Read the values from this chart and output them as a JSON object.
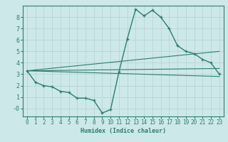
{
  "title": "",
  "xlabel": "Humidex (Indice chaleur)",
  "bg_color": "#cce8e8",
  "line_color": "#2e7d6e",
  "grid_color": "#b8d4d4",
  "xlim": [
    -0.5,
    23.5
  ],
  "ylim": [
    -0.7,
    9.0
  ],
  "yticks": [
    0,
    1,
    2,
    3,
    4,
    5,
    6,
    7,
    8
  ],
  "ytick_labels": [
    "-0",
    "1",
    "2",
    "3",
    "4",
    "5",
    "6",
    "7",
    "8"
  ],
  "xticks": [
    0,
    1,
    2,
    3,
    4,
    5,
    6,
    7,
    8,
    9,
    10,
    11,
    12,
    13,
    14,
    15,
    16,
    17,
    18,
    19,
    20,
    21,
    22,
    23
  ],
  "main_series": {
    "x": [
      0,
      1,
      2,
      3,
      4,
      5,
      6,
      7,
      8,
      9,
      10,
      11,
      12,
      13,
      14,
      15,
      16,
      17,
      18,
      19,
      20,
      21,
      22,
      23
    ],
    "y": [
      3.3,
      2.3,
      2.0,
      1.9,
      1.5,
      1.4,
      0.9,
      0.9,
      0.7,
      -0.4,
      -0.1,
      3.2,
      6.1,
      8.7,
      8.1,
      8.6,
      8.0,
      7.0,
      5.5,
      5.0,
      4.8,
      4.3,
      4.0,
      3.0
    ]
  },
  "linear_lines": [
    {
      "x": [
        0,
        23
      ],
      "y": [
        3.3,
        5.0
      ]
    },
    {
      "x": [
        0,
        23
      ],
      "y": [
        3.3,
        3.5
      ]
    },
    {
      "x": [
        0,
        23
      ],
      "y": [
        3.3,
        2.8
      ]
    }
  ],
  "xlabel_fontsize": 6.0,
  "tick_fontsize": 5.5
}
